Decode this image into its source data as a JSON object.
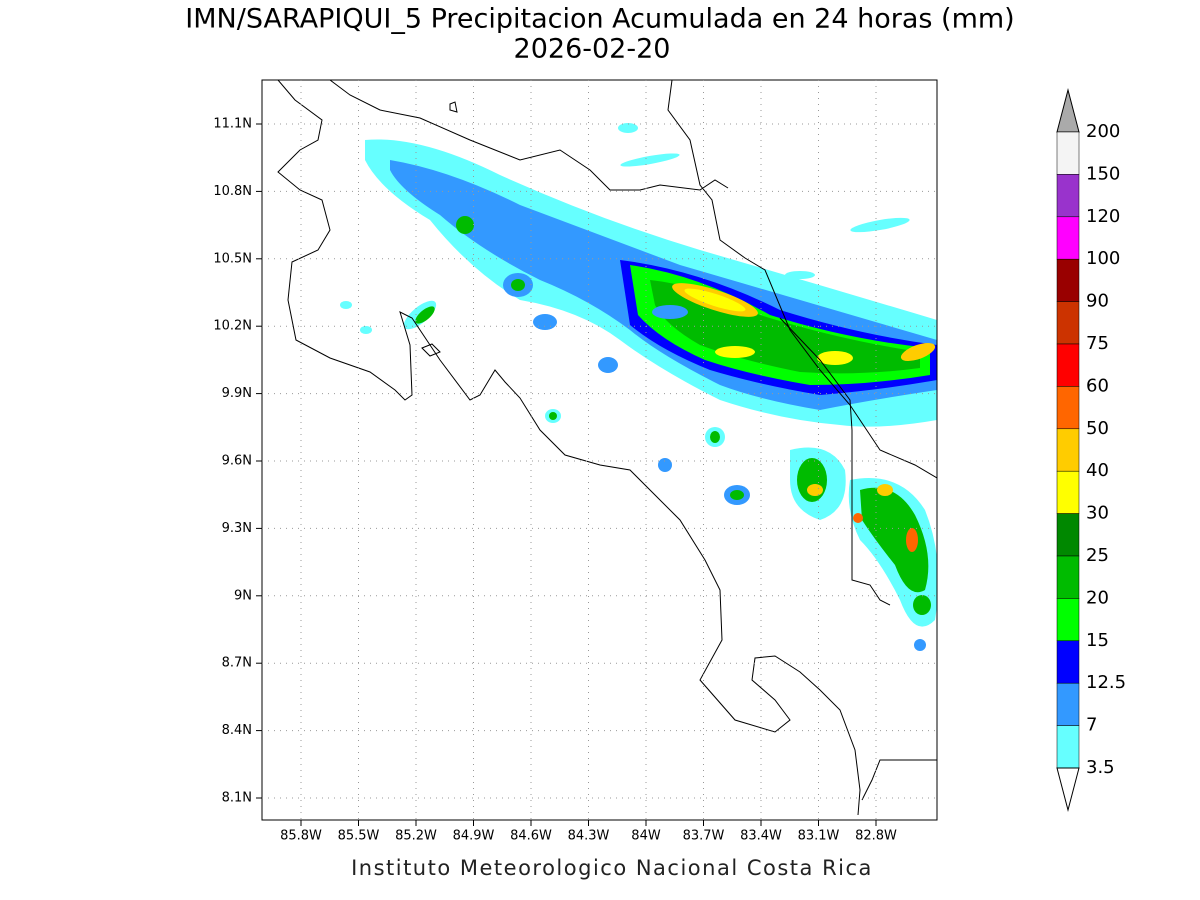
{
  "title": "IMN/SARAPIQUI_5 Precipitacion Acumulada en 24 horas (mm)",
  "subtitle": "2026-02-20",
  "map": {
    "lat_ticks": [
      "11.1N",
      "10.8N",
      "10.5N",
      "10.2N",
      "9.9N",
      "9.6N",
      "9.3N",
      "9N",
      "8.7N",
      "8.4N",
      "8.1N"
    ],
    "lon_ticks": [
      "85.8W",
      "85.5W",
      "85.2W",
      "84.9W",
      "84.6W",
      "84.3W",
      "84W",
      "83.7W",
      "83.4W",
      "83.1W",
      "82.8W"
    ],
    "grid": true
  },
  "colorbar": {
    "levels": [
      200,
      150,
      120,
      100,
      90,
      75,
      60,
      50,
      40,
      30,
      25,
      20,
      15,
      12.5,
      7,
      3.5
    ],
    "colors": [
      "#f4f4f4",
      "#9933cc",
      "#ff00ff",
      "#990000",
      "#cc3300",
      "#ff0000",
      "#ff6600",
      "#ffcc00",
      "#ffff00",
      "#008800",
      "#00bb00",
      "#00ff00",
      "#0000ff",
      "#3399ff",
      "#66ffff"
    ],
    "over_color": "#aaaaaa",
    "under_color": "#ffffff"
  },
  "footer": "Instituto Meteorologico Nacional Costa Rica"
}
